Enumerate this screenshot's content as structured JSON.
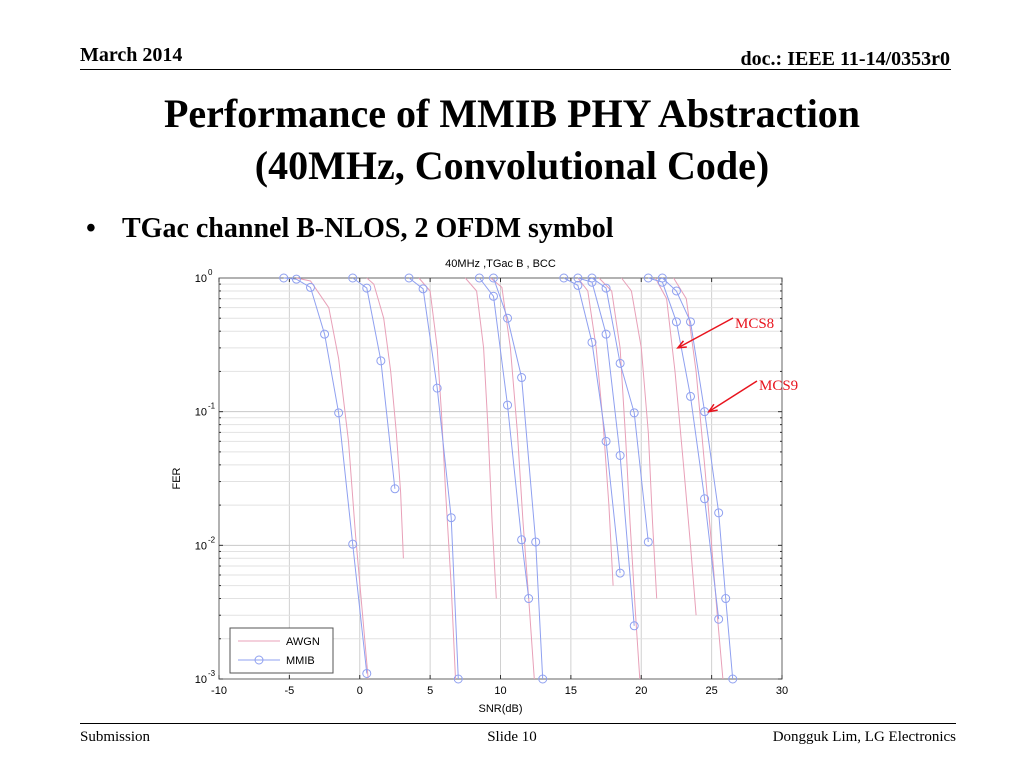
{
  "slide": {
    "date": "March 2014",
    "doc": "doc.: IEEE 11-14/0353r0",
    "title_line1": "Performance of MMIB PHY Abstraction",
    "title_line2": "(40MHz, Convolutional Code)",
    "bullet": "TGac channel B-NLOS, 2 OFDM symbol",
    "bullet_symbol": "•",
    "footer_left": "Submission",
    "footer_center": "Slide 10",
    "footer_right": "Dongguk Lim, LG Electronics"
  },
  "chart_data": {
    "type": "line",
    "title": "40MHz ,TGac B , BCC",
    "xlabel": "SNR(dB)",
    "ylabel": "FER",
    "xlim": [
      -10,
      30
    ],
    "ylim": [
      0.001,
      1
    ],
    "yscale": "log",
    "xticks": [
      -10,
      -5,
      0,
      5,
      10,
      15,
      20,
      25,
      30
    ],
    "xtick_labels": [
      "-10",
      "-5",
      "0",
      "5",
      "10",
      "15",
      "20",
      "25",
      "30"
    ],
    "yticks": [
      {
        "value": 1,
        "base": "10",
        "exp": "0"
      },
      {
        "value": 0.1,
        "base": "10",
        "exp": "-1"
      },
      {
        "value": 0.01,
        "base": "10",
        "exp": "-2"
      },
      {
        "value": 0.001,
        "base": "10",
        "exp": "-3"
      }
    ],
    "grid": true,
    "legend_position": "bottom-left",
    "series": [
      {
        "name": "AWGN",
        "color": "#e8a0b8",
        "marker": "none",
        "curves": [
          [
            [
              -4.5,
              1.0
            ],
            [
              -3.5,
              0.95
            ],
            [
              -2.2,
              0.6
            ],
            [
              -1.5,
              0.25
            ],
            [
              -0.8,
              0.06
            ],
            [
              -0.3,
              0.012
            ],
            [
              0.2,
              0.003
            ],
            [
              0.6,
              0.001
            ]
          ],
          [
            [
              0.5,
              1.0
            ],
            [
              1.0,
              0.9
            ],
            [
              1.7,
              0.5
            ],
            [
              2.2,
              0.2
            ],
            [
              2.6,
              0.07
            ],
            [
              2.9,
              0.025
            ],
            [
              3.1,
              0.008
            ]
          ],
          [
            [
              4.2,
              1.0
            ],
            [
              5.0,
              0.8
            ],
            [
              5.5,
              0.3
            ],
            [
              5.8,
              0.1
            ],
            [
              6.1,
              0.025
            ],
            [
              6.5,
              0.005
            ],
            [
              6.8,
              0.001
            ]
          ],
          [
            [
              7.5,
              1.0
            ],
            [
              8.3,
              0.8
            ],
            [
              8.8,
              0.3
            ],
            [
              9.1,
              0.08
            ],
            [
              9.4,
              0.015
            ],
            [
              9.7,
              0.004
            ]
          ],
          [
            [
              9.3,
              1.0
            ],
            [
              10.1,
              0.85
            ],
            [
              10.7,
              0.3
            ],
            [
              11.2,
              0.07
            ],
            [
              11.6,
              0.015
            ],
            [
              12.0,
              0.004
            ],
            [
              12.4,
              0.001
            ]
          ],
          [
            [
              15.5,
              1.0
            ],
            [
              16.2,
              0.8
            ],
            [
              16.8,
              0.3
            ],
            [
              17.3,
              0.08
            ],
            [
              17.7,
              0.02
            ],
            [
              18.0,
              0.005
            ]
          ],
          [
            [
              17.0,
              1.0
            ],
            [
              17.9,
              0.8
            ],
            [
              18.5,
              0.3
            ],
            [
              18.9,
              0.06
            ],
            [
              19.2,
              0.015
            ],
            [
              19.6,
              0.003
            ],
            [
              19.9,
              0.001
            ]
          ],
          [
            [
              18.6,
              1.0
            ],
            [
              19.3,
              0.8
            ],
            [
              20.0,
              0.3
            ],
            [
              20.5,
              0.07
            ],
            [
              20.8,
              0.015
            ],
            [
              21.1,
              0.004
            ]
          ],
          [
            [
              21.0,
              1.0
            ],
            [
              21.8,
              0.7
            ],
            [
              22.4,
              0.2
            ],
            [
              23.0,
              0.04
            ],
            [
              23.5,
              0.01
            ],
            [
              23.9,
              0.003
            ]
          ],
          [
            [
              22.3,
              1.0
            ],
            [
              23.2,
              0.7
            ],
            [
              23.9,
              0.2
            ],
            [
              24.5,
              0.04
            ],
            [
              25.0,
              0.01
            ],
            [
              25.4,
              0.003
            ],
            [
              25.8,
              0.001
            ]
          ]
        ]
      },
      {
        "name": "MMIB",
        "color": "#8fa0f0",
        "marker": "circle",
        "curves": [
          [
            [
              -5.4,
              1.0
            ],
            [
              -4.5,
              0.98
            ],
            [
              -3.5,
              0.85
            ],
            [
              -2.5,
              0.38
            ],
            [
              -1.5,
              0.098
            ],
            [
              -0.5,
              0.0102
            ],
            [
              0.5,
              0.0011
            ]
          ],
          [
            [
              -0.5,
              1.0
            ],
            [
              0.5,
              0.84
            ],
            [
              1.5,
              0.24
            ],
            [
              2.5,
              0.0265
            ]
          ],
          [
            [
              3.5,
              1.0
            ],
            [
              4.5,
              0.83
            ],
            [
              5.5,
              0.15
            ],
            [
              6.5,
              0.0161
            ],
            [
              7.0,
              0.001
            ]
          ],
          [
            [
              8.5,
              1.0
            ],
            [
              9.5,
              0.73
            ],
            [
              10.5,
              0.112
            ],
            [
              11.5,
              0.011
            ],
            [
              12.0,
              0.004
            ]
          ],
          [
            [
              9.5,
              1.0
            ],
            [
              10.5,
              0.5
            ],
            [
              11.5,
              0.18
            ],
            [
              12.5,
              0.0106
            ],
            [
              13.0,
              0.001
            ]
          ],
          [
            [
              14.5,
              1.0
            ],
            [
              15.5,
              0.88
            ],
            [
              16.5,
              0.33
            ],
            [
              17.5,
              0.06
            ],
            [
              18.5,
              0.0062
            ]
          ],
          [
            [
              15.5,
              1.0
            ],
            [
              16.5,
              0.93
            ],
            [
              17.5,
              0.38
            ],
            [
              18.5,
              0.047
            ],
            [
              19.5,
              0.0025
            ]
          ],
          [
            [
              16.5,
              1.0
            ],
            [
              17.5,
              0.84
            ],
            [
              18.5,
              0.23
            ],
            [
              19.5,
              0.098
            ],
            [
              20.5,
              0.0106
            ]
          ],
          [
            [
              20.5,
              1.0
            ],
            [
              21.5,
              0.93
            ],
            [
              22.5,
              0.47
            ],
            [
              23.5,
              0.13
            ],
            [
              24.5,
              0.0223
            ],
            [
              25.5,
              0.0028
            ]
          ],
          [
            [
              21.5,
              1.0
            ],
            [
              22.5,
              0.8
            ],
            [
              23.5,
              0.47
            ],
            [
              24.5,
              0.1
            ],
            [
              25.5,
              0.0175
            ],
            [
              26.0,
              0.004
            ],
            [
              26.5,
              0.001
            ]
          ]
        ]
      }
    ],
    "annotations": [
      {
        "text": "MCS8",
        "color": "#e8141e",
        "point": [
          22.6,
          0.3
        ]
      },
      {
        "text": "MCS9",
        "color": "#e8141e",
        "point": [
          24.8,
          0.1
        ]
      }
    ]
  }
}
